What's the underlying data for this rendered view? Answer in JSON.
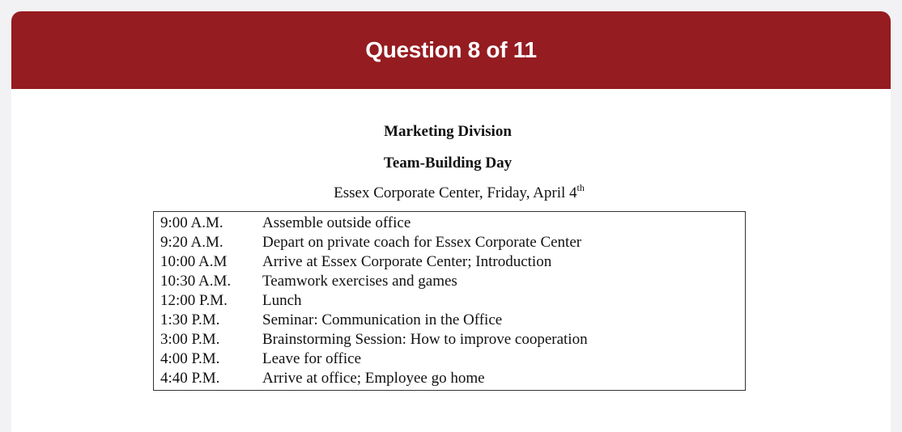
{
  "header": {
    "title": "Question 8 of 11"
  },
  "document": {
    "title_line1": "Marketing Division",
    "title_line2": "Team-Building Day",
    "venue_text": "Essex Corporate Center, Friday, April 4",
    "venue_suffix": "th"
  },
  "schedule": [
    {
      "time": "9:00 A.M.",
      "activity": "Assemble outside office"
    },
    {
      "time": "9:20 A.M.",
      "activity": "Depart on private coach for Essex Corporate Center"
    },
    {
      "time": "10:00 A.M",
      "activity": "Arrive at Essex Corporate Center; Introduction"
    },
    {
      "time": "10:30 A.M.",
      "activity": "Teamwork exercises and games"
    },
    {
      "time": "12:00 P.M.",
      "activity": "Lunch"
    },
    {
      "time": "1:30 P.M.",
      "activity": "Seminar: Communication in the Office"
    },
    {
      "time": "3:00 P.M.",
      "activity": "Brainstorming Session: How to improve cooperation"
    },
    {
      "time": "4:00 P.M.",
      "activity": "Leave for office"
    },
    {
      "time": "4:40 P.M.",
      "activity": "Arrive at office; Employee go home"
    }
  ],
  "colors": {
    "header_bg": "#951c20",
    "page_bg": "#f2f2f4"
  }
}
